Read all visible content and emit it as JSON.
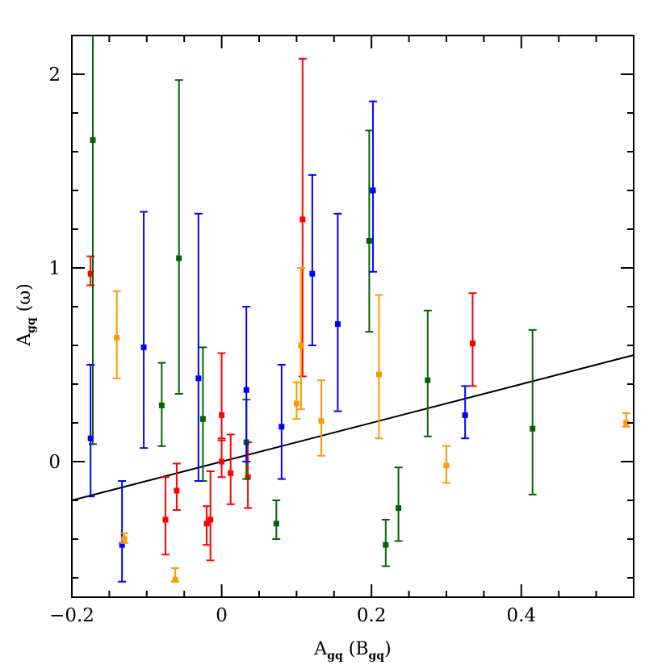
{
  "chart_data": {
    "type": "scatter",
    "xlabel": "A",
    "xlabel_sub": "gq",
    "xlabel_arg": "B",
    "xlabel_arg_sub": "gq",
    "ylabel": "A",
    "ylabel_sub": "gq",
    "ylabel_arg": "ω",
    "xlim": [
      -0.2,
      0.55
    ],
    "ylim": [
      -0.7,
      2.2
    ],
    "x_major_ticks": [
      -0.2,
      0,
      0.2,
      0.4
    ],
    "x_tick_labels": [
      "−0.2",
      "0",
      "0.2",
      "0.4"
    ],
    "x_minor_ticks": [
      -0.15,
      -0.1,
      -0.05,
      0.05,
      0.1,
      0.15,
      0.25,
      0.3,
      0.35,
      0.45,
      0.5
    ],
    "y_major_ticks": [
      0,
      1,
      2
    ],
    "y_tick_labels": [
      "0",
      "1",
      "2"
    ],
    "y_minor_ticks": [
      -0.6,
      -0.4,
      -0.2,
      0.2,
      0.4,
      0.6,
      0.8,
      1.2,
      1.4,
      1.6,
      1.8,
      2.2
    ],
    "fit_line": {
      "x": [
        -0.2,
        0.55
      ],
      "y": [
        -0.2,
        0.55
      ],
      "color": "#000000"
    },
    "series": [
      {
        "name": "red",
        "color": "#ff0000",
        "points": [
          {
            "x": -0.175,
            "y": 0.97,
            "lo": 0.91,
            "hi": 1.06
          },
          {
            "x": -0.075,
            "y": -0.3,
            "lo": -0.48,
            "hi": -0.08
          },
          {
            "x": -0.06,
            "y": -0.15,
            "lo": -0.25,
            "hi": -0.01
          },
          {
            "x": -0.02,
            "y": -0.32,
            "lo": -0.43,
            "hi": -0.23
          },
          {
            "x": -0.015,
            "y": -0.3,
            "lo": -0.51,
            "hi": -0.05
          },
          {
            "x": 0.0,
            "y": 0.24,
            "lo": 0.12,
            "hi": 0.56
          },
          {
            "x": 0.0,
            "y": 0.0,
            "lo": -0.08,
            "hi": 0.11
          },
          {
            "x": 0.012,
            "y": -0.06,
            "lo": -0.22,
            "hi": 0.14
          },
          {
            "x": 0.035,
            "y": -0.08,
            "lo": -0.24,
            "hi": 0.1
          },
          {
            "x": 0.108,
            "y": 1.25,
            "lo": 0.44,
            "hi": 2.08
          },
          {
            "x": 0.335,
            "y": 0.61,
            "lo": 0.39,
            "hi": 0.87
          }
        ]
      },
      {
        "name": "green",
        "color": "#006400",
        "points": [
          {
            "x": -0.172,
            "y": 1.66,
            "lo": 0.09,
            "hi": 2.2
          },
          {
            "x": -0.08,
            "y": 0.29,
            "lo": 0.08,
            "hi": 0.51
          },
          {
            "x": -0.057,
            "y": 1.05,
            "lo": 0.35,
            "hi": 1.97
          },
          {
            "x": -0.025,
            "y": 0.22,
            "lo": -0.1,
            "hi": 0.59
          },
          {
            "x": 0.033,
            "y": 0.1,
            "lo": -0.09,
            "hi": 0.32
          },
          {
            "x": 0.073,
            "y": -0.32,
            "lo": -0.4,
            "hi": -0.2
          },
          {
            "x": 0.197,
            "y": 1.14,
            "lo": 0.67,
            "hi": 1.71
          },
          {
            "x": 0.219,
            "y": -0.43,
            "lo": -0.54,
            "hi": -0.3
          },
          {
            "x": 0.236,
            "y": -0.24,
            "lo": -0.41,
            "hi": -0.03
          },
          {
            "x": 0.275,
            "y": 0.42,
            "lo": 0.13,
            "hi": 0.78
          },
          {
            "x": 0.415,
            "y": 0.17,
            "lo": -0.17,
            "hi": 0.68
          }
        ]
      },
      {
        "name": "blue",
        "color": "#0000ff",
        "points": [
          {
            "x": -0.175,
            "y": 0.12,
            "lo": -0.18,
            "hi": 0.5
          },
          {
            "x": -0.133,
            "y": -0.43,
            "lo": -0.62,
            "hi": -0.1
          },
          {
            "x": -0.104,
            "y": 0.59,
            "lo": 0.07,
            "hi": 1.29
          },
          {
            "x": -0.031,
            "y": 0.43,
            "lo": -0.1,
            "hi": 1.28
          },
          {
            "x": 0.033,
            "y": 0.37,
            "lo": 0.0,
            "hi": 0.8
          },
          {
            "x": 0.08,
            "y": 0.18,
            "lo": -0.09,
            "hi": 0.5
          },
          {
            "x": 0.121,
            "y": 0.97,
            "lo": 0.6,
            "hi": 1.48
          },
          {
            "x": 0.155,
            "y": 0.71,
            "lo": 0.26,
            "hi": 1.28
          },
          {
            "x": 0.202,
            "y": 1.4,
            "lo": 0.98,
            "hi": 1.86
          },
          {
            "x": 0.325,
            "y": 0.24,
            "lo": 0.12,
            "hi": 0.39
          }
        ]
      },
      {
        "name": "orange",
        "color": "#ff9900",
        "points": [
          {
            "x": -0.14,
            "y": 0.64,
            "lo": 0.43,
            "hi": 0.88
          },
          {
            "x": -0.13,
            "y": -0.4,
            "lo": -0.42,
            "hi": -0.37
          },
          {
            "x": -0.062,
            "y": -0.61,
            "lo": -0.62,
            "hi": -0.55
          },
          {
            "x": 0.1,
            "y": 0.3,
            "lo": 0.22,
            "hi": 0.41
          },
          {
            "x": 0.106,
            "y": 0.6,
            "lo": 0.27,
            "hi": 1.0
          },
          {
            "x": 0.133,
            "y": 0.21,
            "lo": 0.03,
            "hi": 0.42
          },
          {
            "x": 0.21,
            "y": 0.45,
            "lo": 0.12,
            "hi": 0.86
          },
          {
            "x": 0.3,
            "y": -0.02,
            "lo": -0.11,
            "hi": 0.08
          },
          {
            "x": 0.54,
            "y": 0.2,
            "lo": 0.18,
            "hi": 0.25
          }
        ]
      }
    ]
  }
}
